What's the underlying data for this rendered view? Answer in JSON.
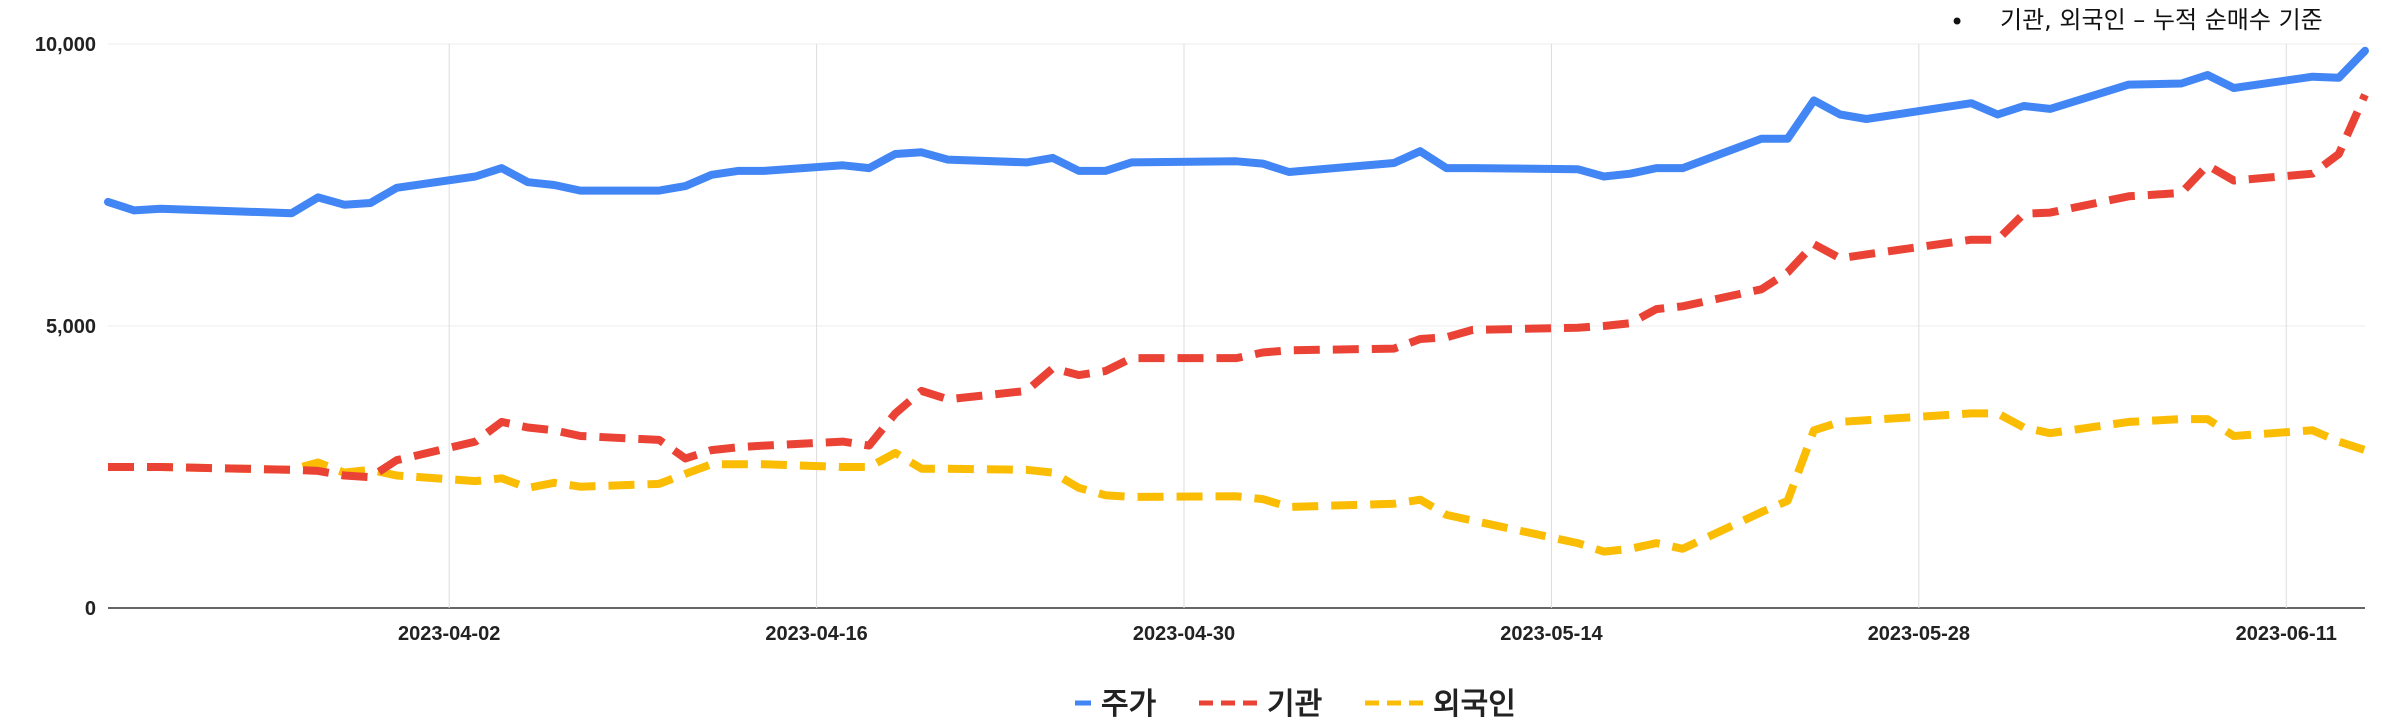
{
  "note": {
    "bullet": "•",
    "text": "기관, 외국인 – 누적 순매수 기준"
  },
  "chart_data": {
    "type": "line",
    "title": "",
    "xlabel": "",
    "ylabel": "",
    "x_range": [
      "2023-03-20",
      "2023-06-14"
    ],
    "ylim": [
      0,
      10000
    ],
    "y_ticks": [
      0,
      5000,
      10000
    ],
    "y_tick_labels": [
      "0",
      "5,000",
      "10,000"
    ],
    "x_ticks": [
      "2023-04-02",
      "2023-04-16",
      "2023-04-30",
      "2023-05-14",
      "2023-05-28",
      "2023-06-11"
    ],
    "grid": true,
    "legend": "bottom",
    "x": [
      "2023-03-20",
      "2023-03-21",
      "2023-03-22",
      "2023-03-27",
      "2023-03-28",
      "2023-03-29",
      "2023-03-30",
      "2023-03-31",
      "2023-04-03",
      "2023-04-04",
      "2023-04-05",
      "2023-04-06",
      "2023-04-07",
      "2023-04-10",
      "2023-04-11",
      "2023-04-12",
      "2023-04-13",
      "2023-04-14",
      "2023-04-17",
      "2023-04-18",
      "2023-04-19",
      "2023-04-20",
      "2023-04-21",
      "2023-04-24",
      "2023-04-25",
      "2023-04-26",
      "2023-04-27",
      "2023-04-28",
      "2023-05-02",
      "2023-05-03",
      "2023-05-04",
      "2023-05-08",
      "2023-05-09",
      "2023-05-10",
      "2023-05-11",
      "2023-05-15",
      "2023-05-16",
      "2023-05-17",
      "2023-05-18",
      "2023-05-19",
      "2023-05-22",
      "2023-05-23",
      "2023-05-24",
      "2023-05-25",
      "2023-05-26",
      "2023-05-30",
      "2023-05-31",
      "2023-06-01",
      "2023-06-02",
      "2023-06-05",
      "2023-06-07",
      "2023-06-08",
      "2023-06-09",
      "2023-06-12",
      "2023-06-13",
      "2023-06-14"
    ],
    "series": [
      {
        "name": "주가",
        "color": "#4285f4",
        "dash": "solid",
        "values": [
          7200,
          7050,
          7080,
          7000,
          7280,
          7150,
          7180,
          7450,
          7650,
          7800,
          7550,
          7500,
          7400,
          7400,
          7480,
          7680,
          7750,
          7750,
          7850,
          7800,
          8050,
          8080,
          7950,
          7900,
          7980,
          7750,
          7750,
          7900,
          7920,
          7880,
          7730,
          7890,
          8100,
          7800,
          7800,
          7780,
          7650,
          7700,
          7800,
          7800,
          8320,
          8320,
          9000,
          8750,
          8670,
          8950,
          8750,
          8900,
          8850,
          9280,
          9300,
          9450,
          9220,
          9420,
          9400,
          9880
        ]
      },
      {
        "name": "기관",
        "color": "#ea4335",
        "dash": "dashed",
        "values": [
          2500,
          2500,
          2500,
          2450,
          2430,
          2350,
          2320,
          2620,
          2950,
          3300,
          3200,
          3150,
          3050,
          2980,
          2650,
          2800,
          2850,
          2880,
          2950,
          2880,
          3450,
          3850,
          3700,
          3850,
          4250,
          4130,
          4200,
          4430,
          4430,
          4530,
          4570,
          4600,
          4770,
          4800,
          4930,
          4970,
          5000,
          5050,
          5300,
          5350,
          5650,
          5950,
          6450,
          6200,
          6270,
          6530,
          6530,
          6990,
          7010,
          7300,
          7360,
          7850,
          7580,
          7700,
          8050,
          9100
        ]
      },
      {
        "name": "외국인",
        "color": "#fbbc04",
        "dash": "dashed",
        "values": [
          2500,
          2500,
          2500,
          2450,
          2580,
          2400,
          2450,
          2350,
          2250,
          2300,
          2130,
          2220,
          2150,
          2200,
          2380,
          2550,
          2550,
          2550,
          2500,
          2500,
          2750,
          2470,
          2470,
          2450,
          2400,
          2130,
          2000,
          1970,
          1980,
          1930,
          1790,
          1850,
          1920,
          1650,
          1550,
          1150,
          1000,
          1050,
          1150,
          1050,
          1700,
          1900,
          3150,
          3300,
          3330,
          3450,
          3450,
          3200,
          3100,
          3300,
          3350,
          3350,
          3050,
          3150,
          2950,
          2800
        ]
      }
    ]
  }
}
